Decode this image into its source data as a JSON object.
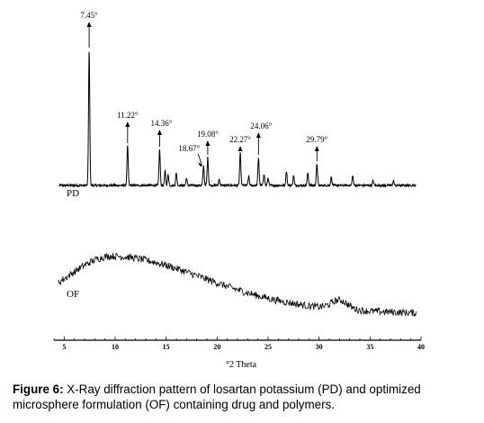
{
  "chart_data": {
    "type": "line",
    "x_axis": {
      "label": "°2 Theta",
      "range": [
        4,
        40
      ],
      "ticks": [
        5,
        10,
        15,
        20,
        25,
        30,
        35,
        40
      ]
    },
    "y_axis": {
      "label": "",
      "ticks": []
    },
    "grid": false,
    "legend": "none",
    "series": [
      {
        "name": "PD",
        "baseline": 4,
        "noise": 1.2,
        "peaks": [
          {
            "x": 7.45,
            "height": 150,
            "label": "7.45°"
          },
          {
            "x": 11.22,
            "height": 44,
            "label": "11.22°"
          },
          {
            "x": 14.36,
            "height": 40,
            "label": "14.36°"
          },
          {
            "x": 14.9,
            "height": 16,
            "label": ""
          },
          {
            "x": 15.2,
            "height": 12,
            "label": ""
          },
          {
            "x": 16.0,
            "height": 14,
            "label": ""
          },
          {
            "x": 17.0,
            "height": 8,
            "label": ""
          },
          {
            "x": 18.67,
            "height": 22,
            "label": "18.67°"
          },
          {
            "x": 19.08,
            "height": 31,
            "label": "19.08°"
          },
          {
            "x": 20.2,
            "height": 7,
            "label": ""
          },
          {
            "x": 22.27,
            "height": 36,
            "label": "22.27°"
          },
          {
            "x": 23.1,
            "height": 10,
            "label": ""
          },
          {
            "x": 24.06,
            "height": 31,
            "label": "24.06°"
          },
          {
            "x": 24.6,
            "height": 13,
            "label": ""
          },
          {
            "x": 25.0,
            "height": 8,
            "label": ""
          },
          {
            "x": 26.8,
            "height": 16,
            "label": ""
          },
          {
            "x": 27.5,
            "height": 11,
            "label": ""
          },
          {
            "x": 28.9,
            "height": 14,
            "label": ""
          },
          {
            "x": 29.79,
            "height": 24,
            "label": "29.79°"
          },
          {
            "x": 31.2,
            "height": 9,
            "label": ""
          },
          {
            "x": 33.3,
            "height": 11,
            "label": ""
          },
          {
            "x": 35.3,
            "height": 5,
            "label": ""
          },
          {
            "x": 37.3,
            "height": 5,
            "label": ""
          }
        ]
      },
      {
        "name": "OF",
        "halo": {
          "center": 9.8,
          "width_left": 4.2,
          "width_right": 8.8,
          "height": 55
        },
        "baseline_start": 12,
        "baseline_end": 2,
        "noise": 4,
        "small_peaks": [
          {
            "x": 32.0,
            "height": 10
          }
        ]
      }
    ],
    "trace_labels": [
      "PD",
      "OF"
    ]
  },
  "caption": {
    "prefix": "Figure 6:",
    "text": " X-Ray diffraction pattern of losartan potassium (PD) and optimized microsphere formulation (OF) containing drug and polymers."
  }
}
